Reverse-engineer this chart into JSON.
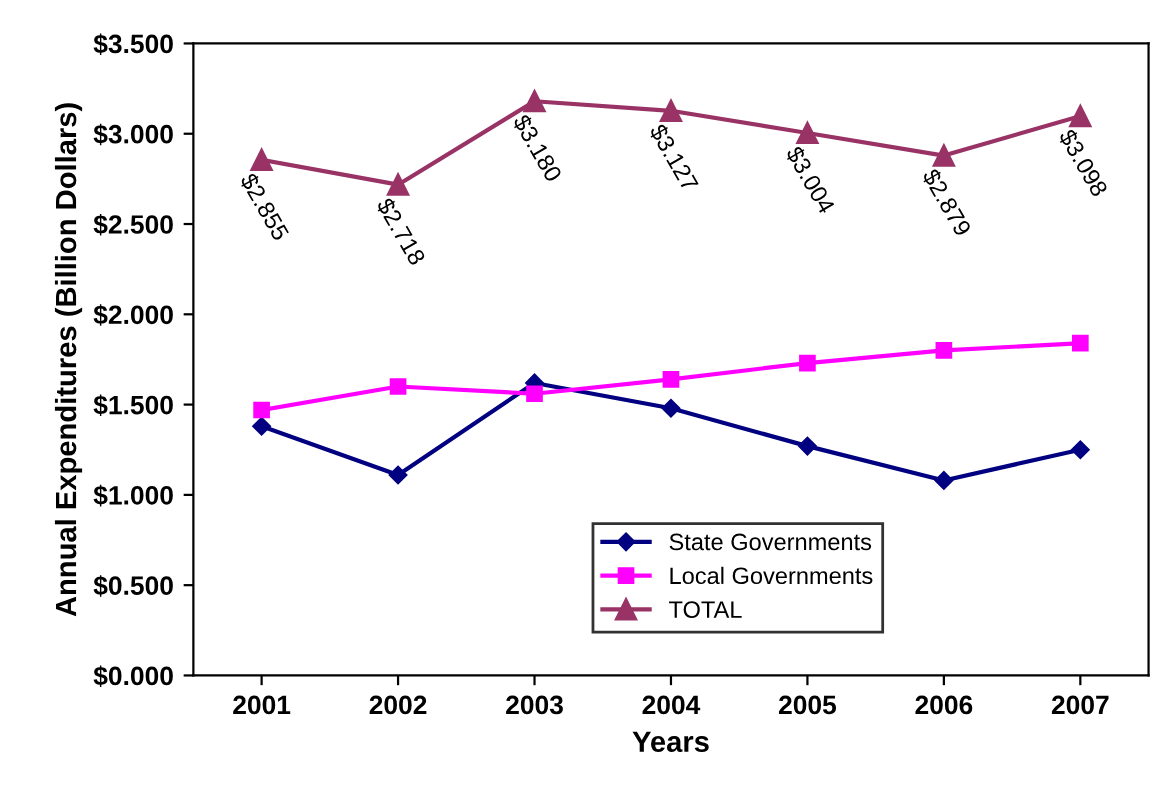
{
  "chart_data": {
    "type": "line",
    "xlabel": "Years",
    "ylabel": "Annual Expenditures (Billion Dollars)",
    "categories": [
      "2001",
      "2002",
      "2003",
      "2004",
      "2005",
      "2006",
      "2007"
    ],
    "series": [
      {
        "name": "State Governments",
        "color": "#000080",
        "marker": "diamond",
        "values": [
          1.38,
          1.11,
          1.62,
          1.48,
          1.27,
          1.08,
          1.25
        ]
      },
      {
        "name": "Local Governments",
        "color": "#ff00ff",
        "marker": "square",
        "values": [
          1.47,
          1.6,
          1.56,
          1.64,
          1.73,
          1.8,
          1.84
        ]
      },
      {
        "name": "TOTAL",
        "color": "#993366",
        "marker": "triangle",
        "values": [
          2.855,
          2.718,
          3.18,
          3.127,
          3.004,
          2.879,
          3.098
        ],
        "value_labels": [
          "$2.855",
          "$2.718",
          "$3.180",
          "$3.127",
          "$3.004",
          "$2.879",
          "$3.098"
        ]
      }
    ],
    "ylim": [
      0,
      3.5
    ],
    "yticks": [
      {
        "value": 0,
        "label": "$0.000"
      },
      {
        "value": 0.5,
        "label": "$0.500"
      },
      {
        "value": 1.0,
        "label": "$1.000"
      },
      {
        "value": 1.5,
        "label": "$1.500"
      },
      {
        "value": 2.0,
        "label": "$2.000"
      },
      {
        "value": 2.5,
        "label": "$2.500"
      },
      {
        "value": 3.0,
        "label": "$3.000"
      },
      {
        "value": 3.5,
        "label": "$3.500"
      }
    ],
    "grid": false,
    "legend": "bottom",
    "line_style": "solid"
  }
}
